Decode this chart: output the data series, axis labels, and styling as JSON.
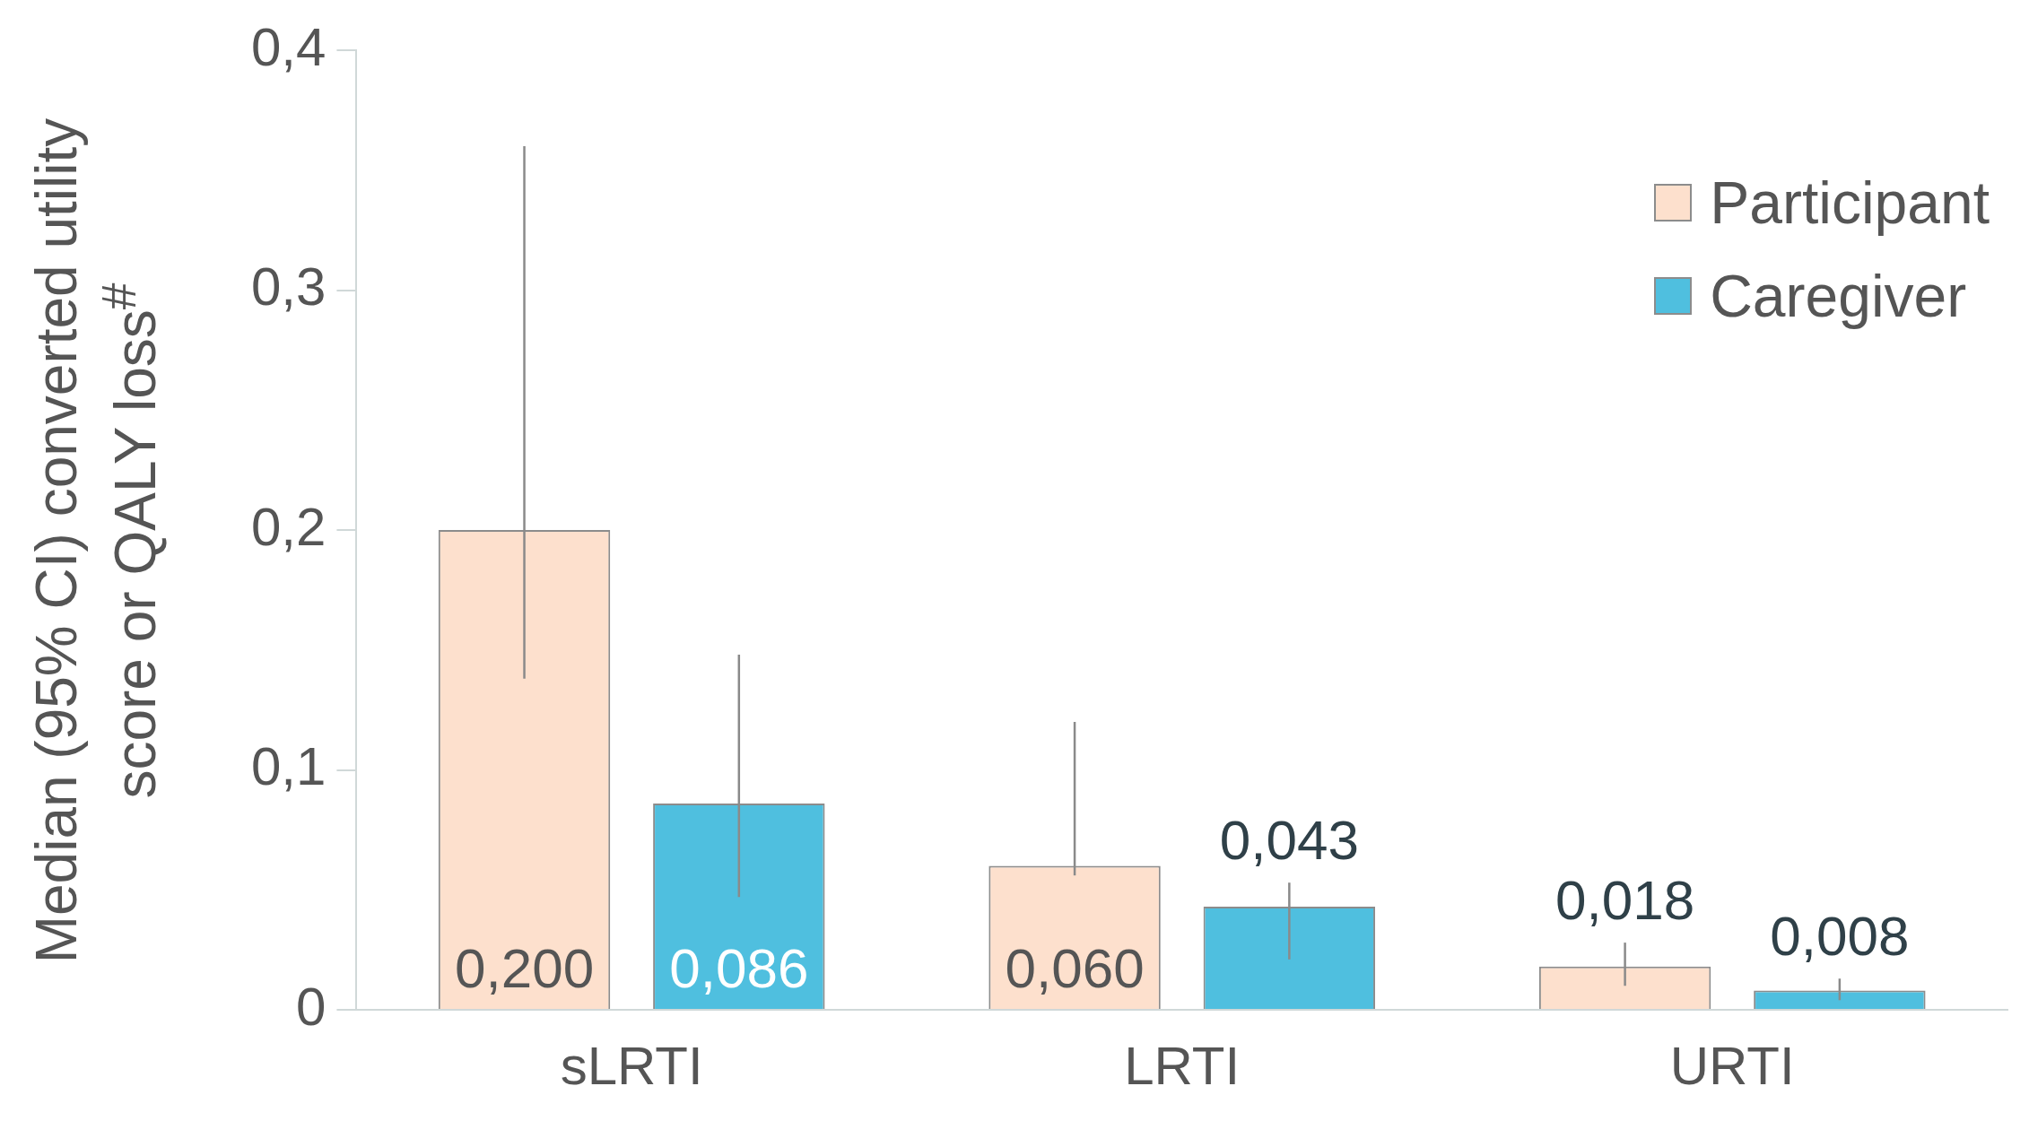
{
  "chart_data": {
    "type": "bar",
    "ylabel": "Median (95% CI) converted utility score or QALY loss$^{#}$",
    "categories": [
      "sLRTI",
      "LRTI",
      "URTI"
    ],
    "series": [
      {
        "name": "Participant",
        "color": "#fde0cd",
        "values": [
          0.2,
          0.06,
          0.018
        ],
        "errors": [
          [
            0.138,
            0.36
          ],
          [
            0.056,
            0.12
          ],
          [
            0.01,
            0.028
          ]
        ],
        "value_labels": [
          "0,200",
          "0,060",
          "0,018"
        ]
      },
      {
        "name": "Caregiver",
        "color": "#4fbfdf",
        "values": [
          0.086,
          0.043,
          0.008
        ],
        "errors": [
          [
            0.047,
            0.148
          ],
          [
            0.021,
            0.053
          ],
          [
            0.004,
            0.013
          ]
        ],
        "value_labels": [
          "0,086",
          "0,043",
          "0,008"
        ]
      }
    ],
    "ylim": [
      0,
      0.4
    ],
    "yticks": [
      {
        "value": 0,
        "label": "0"
      },
      {
        "value": 0.1,
        "label": "0,1"
      },
      {
        "value": 0.2,
        "label": "0,2"
      },
      {
        "value": 0.3,
        "label": "0,3"
      },
      {
        "value": 0.4,
        "label": "0,4"
      }
    ],
    "grid": false,
    "legend": "top right"
  }
}
